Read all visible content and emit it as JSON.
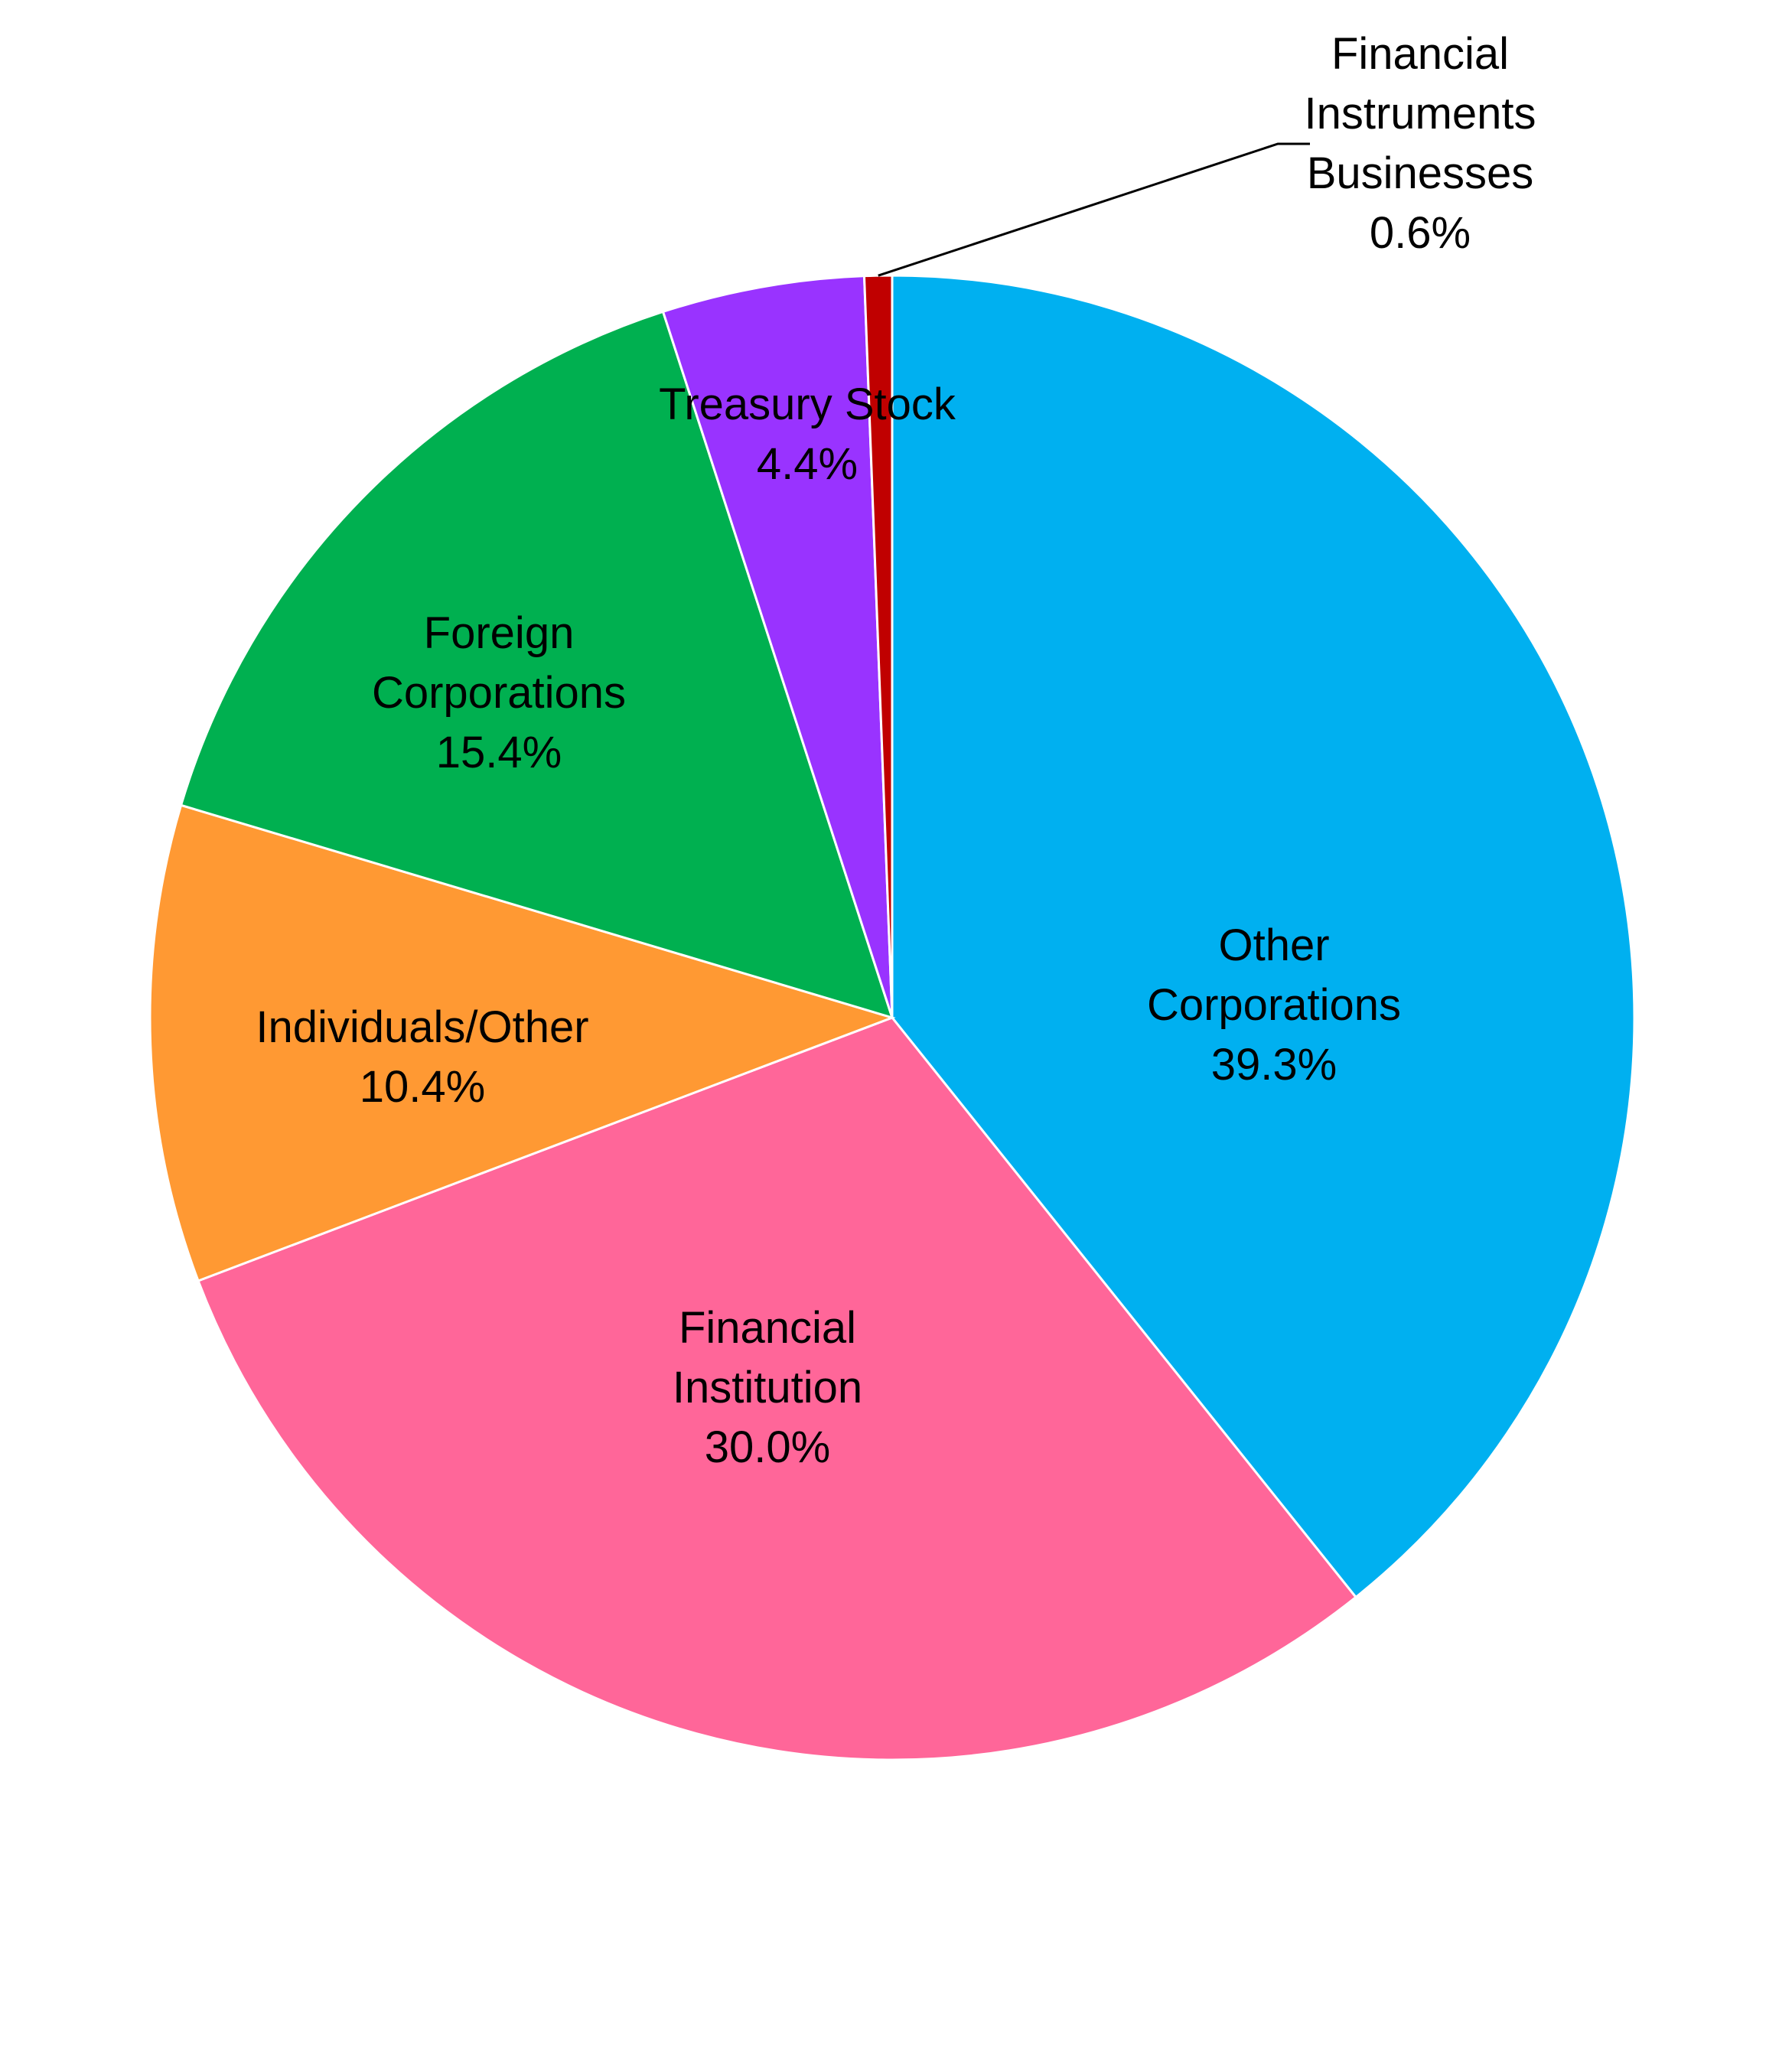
{
  "chart_data": {
    "type": "pie",
    "title": "",
    "start": "12 o'clock",
    "direction": "clockwise",
    "slices": [
      {
        "label": [
          "Other",
          "Corporations"
        ],
        "value": 39.3,
        "value_label": "39.3%",
        "color": "#00B0F0"
      },
      {
        "label": [
          "Financial",
          "Institution"
        ],
        "value": 30.0,
        "value_label": "30.0%",
        "color": "#FF6699"
      },
      {
        "label": [
          "Individuals/Other"
        ],
        "value": 10.4,
        "value_label": "10.4%",
        "color": "#FF9933"
      },
      {
        "label": [
          "Foreign",
          "Corporations"
        ],
        "value": 15.4,
        "value_label": "15.4%",
        "color": "#00B050"
      },
      {
        "label": [
          "Treasury Stock"
        ],
        "value": 4.4,
        "value_label": "4.4%",
        "color": "#9933FF"
      },
      {
        "label": [
          "Financial",
          "Instruments",
          "Businesses"
        ],
        "value": 0.6,
        "value_label": "0.6%",
        "color": "#C00000",
        "callout": true
      }
    ]
  }
}
